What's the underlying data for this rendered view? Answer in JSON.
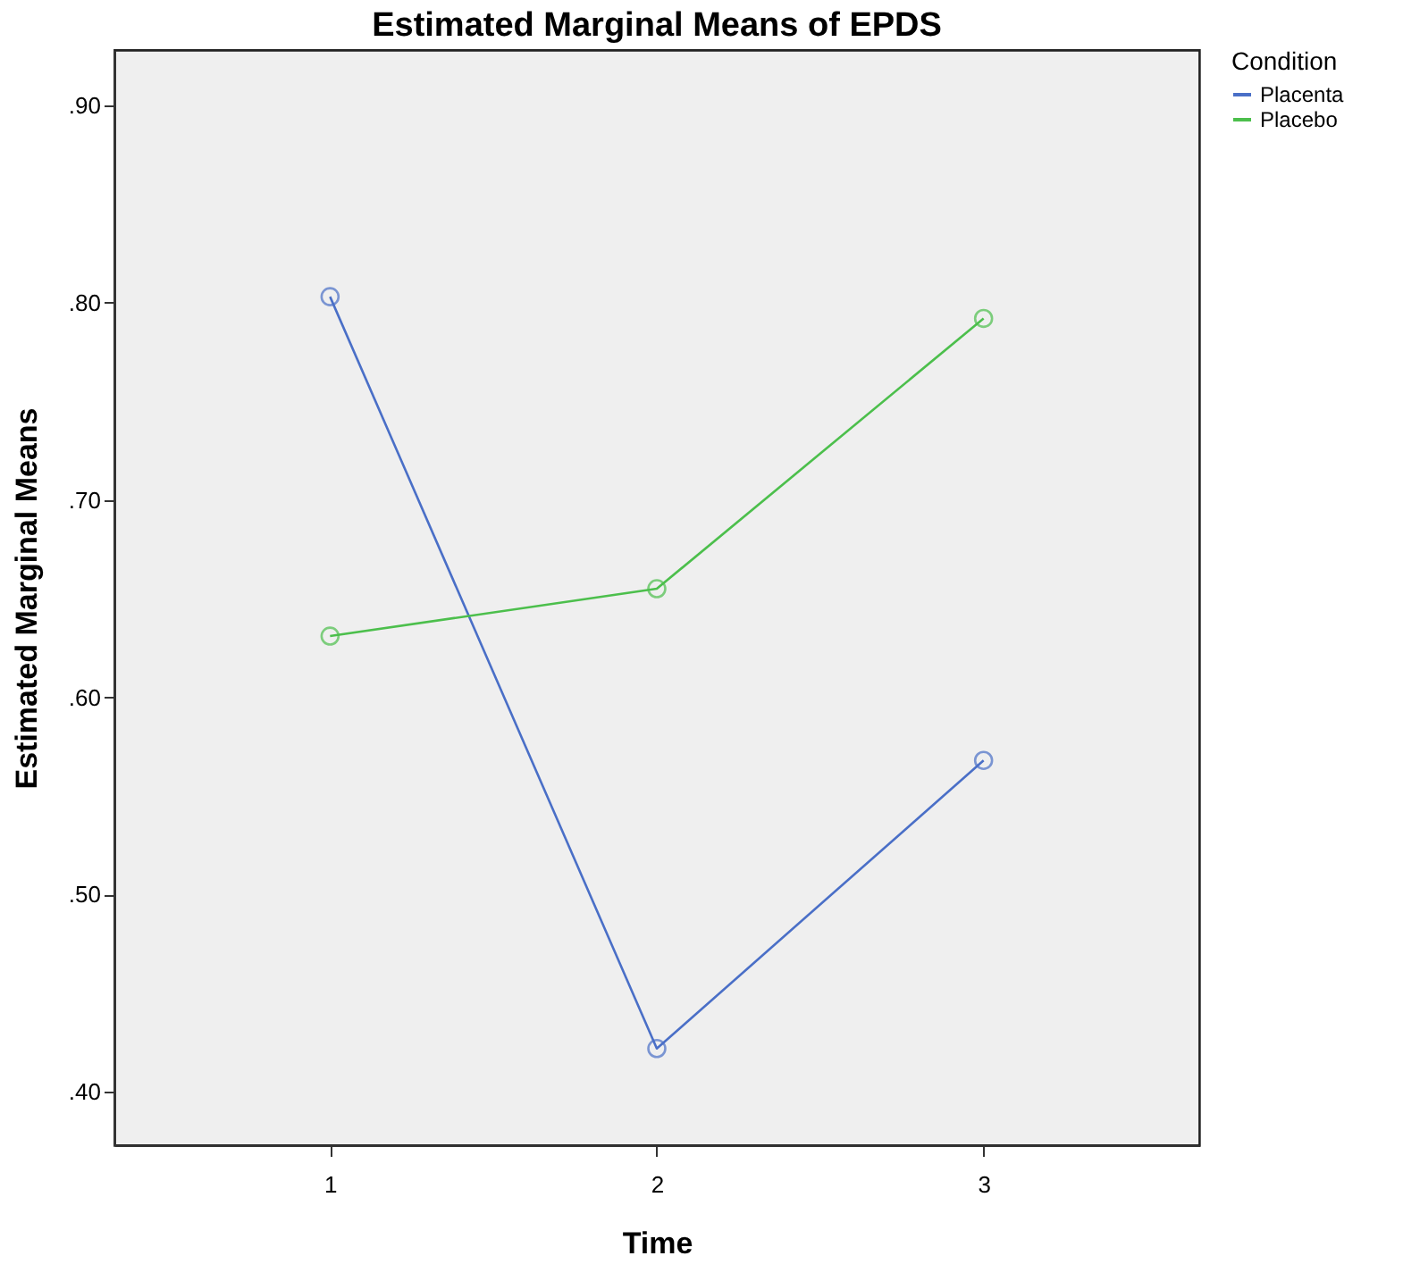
{
  "chart_data": {
    "type": "line",
    "title": "Estimated Marginal Means of EPDS",
    "xlabel": "Time",
    "ylabel": "Estimated Marginal Means",
    "legend_title": "Condition",
    "x": [
      1,
      2,
      3
    ],
    "series": [
      {
        "name": "Placenta",
        "color": "#4a6fc7",
        "values": [
          0.803,
          0.422,
          0.568
        ]
      },
      {
        "name": "Placebo",
        "color": "#4cbf4c",
        "values": [
          0.631,
          0.655,
          0.792
        ]
      }
    ],
    "xlim": [
      0.34,
      3.66
    ],
    "xticks": [
      1,
      2,
      3
    ],
    "ylim": [
      0.373,
      0.928
    ],
    "yticks": [
      {
        "value": 0.4,
        "label": ".40"
      },
      {
        "value": 0.5,
        "label": ".50"
      },
      {
        "value": 0.6,
        "label": ".60"
      },
      {
        "value": 0.7,
        "label": ".70"
      },
      {
        "value": 0.8,
        "label": ".80"
      },
      {
        "value": 0.9,
        "label": ".90"
      }
    ],
    "grid": false,
    "legend": "top right",
    "marker": "circle",
    "line_style": "solid"
  }
}
